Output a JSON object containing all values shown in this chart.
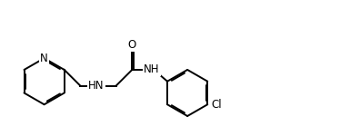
{
  "bg_color": "#ffffff",
  "line_color": "#000000",
  "line_width": 1.4,
  "font_size": 8.5,
  "figsize": [
    3.74,
    1.5
  ],
  "dpi": 100,
  "xlim": [
    0,
    3.74
  ],
  "ylim": [
    0,
    1.5
  ]
}
